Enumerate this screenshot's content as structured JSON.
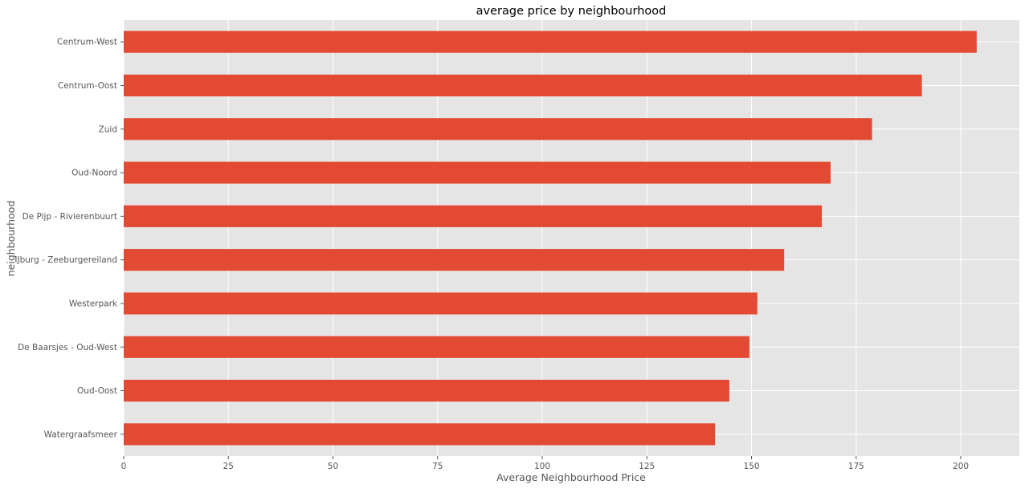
{
  "chart_data": {
    "type": "bar",
    "orientation": "horizontal",
    "title": "average price by neighbourhood",
    "xlabel": "Average Neighbourhood Price",
    "ylabel": "neighbourhood",
    "xlim": [
      0,
      214
    ],
    "x_ticks": [
      0,
      25,
      50,
      75,
      100,
      125,
      150,
      175,
      200
    ],
    "grid": true,
    "categories": [
      "Centrum-West",
      "Centrum-Oost",
      "Zuid",
      "Oud-Noord",
      "De Pijp - Rivierenbuurt",
      "IJburg - Zeeburgereiland",
      "Westerpark",
      "De Baarsjes - Oud-West",
      "Oud-Oost",
      "Watergraafsmeer"
    ],
    "values": [
      203.8,
      190.7,
      178.8,
      168.9,
      166.8,
      157.8,
      151.4,
      149.5,
      144.7,
      141.3
    ],
    "colors": {
      "bar": "#e24a33",
      "plot_background": "#e5e5e5",
      "grid": "#ffffff",
      "text": "#555555"
    }
  }
}
